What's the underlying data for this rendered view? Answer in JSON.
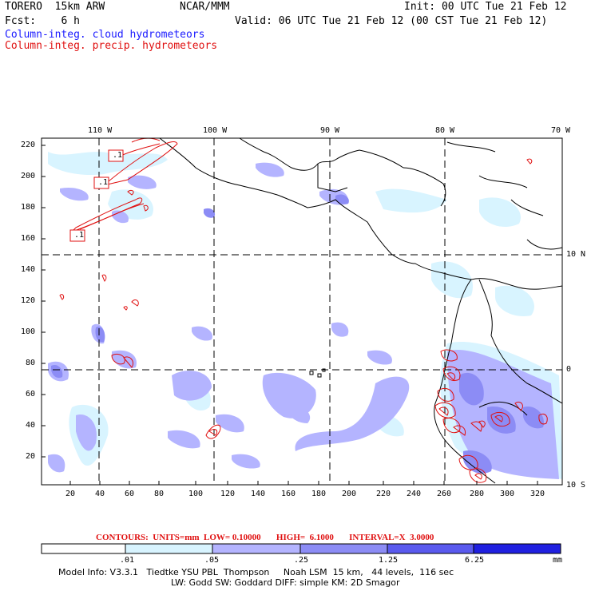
{
  "header": {
    "model": "TORERO  15km ARW",
    "center": "NCAR/MMM",
    "init": "Init: 00 UTC Tue 21 Feb 12",
    "fcst": "Fcst:    6 h",
    "valid": "Valid: 06 UTC Tue 21 Feb 12 (00 CST Tue 21 Feb 12)",
    "legend_cloud": "Column-integ. cloud hydrometeors",
    "legend_precip": "Column-integ. precip. hydrometeors"
  },
  "colors": {
    "cloud_text": "#1a1aff",
    "precip_text": "#e01010",
    "shade1": "#d8f4ff",
    "shade2": "#b4b4ff",
    "shade3": "#8c8cf5",
    "shade4": "#5a5aee",
    "shade5": "#2020e0"
  },
  "map": {
    "lon_labels": [
      "110 W",
      "100 W",
      "90 W",
      "80 W",
      "70 W"
    ],
    "lat_labels": [
      "10 N",
      "0",
      "10 S"
    ],
    "y_ticks": [
      "220",
      "200",
      "180",
      "160",
      "140",
      "120",
      "100",
      "80",
      "60",
      "40",
      "20"
    ],
    "x_ticks": [
      "20",
      "40",
      "60",
      "80",
      "100",
      "120",
      "140",
      "160",
      "180",
      "200",
      "220",
      "240",
      "260",
      "280",
      "300",
      "320"
    ],
    "contour_labels": [
      ".1",
      ".1",
      ".1"
    ]
  },
  "contour_info": {
    "text": "CONTOURS:  UNITS=mm  LOW= 0.10000       HIGH=  6.1000       INTERVAL=X  3.0000"
  },
  "colorbar": {
    "labels": [
      ".01",
      ".05",
      ".25",
      "1.25",
      "6.25"
    ],
    "units": "mm"
  },
  "model_info": {
    "line1": "Model Info: V3.3.1   Tiedtke YSU PBL  Thompson     Noah LSM  15 km,   44 levels,  116 sec",
    "line2": "LW: Godd SW: Goddard DIFF: simple KM: 2D Smagor"
  }
}
